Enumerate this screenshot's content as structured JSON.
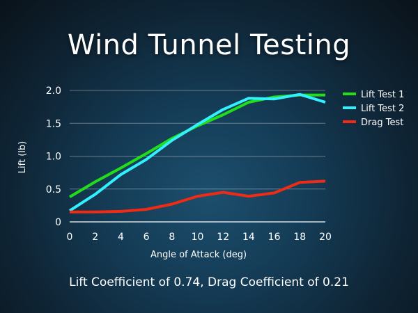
{
  "slide": {
    "title": "Wind Tunnel Testing",
    "subtitle": "Lift Coefficient of 0.74, Drag Coefficient of 0.21"
  },
  "chart_data": {
    "type": "line",
    "xlabel": "Angle of Attack (deg)",
    "ylabel": "Lift (lb)",
    "x": [
      0,
      2,
      4,
      6,
      8,
      10,
      12,
      14,
      16,
      18,
      20
    ],
    "xlim": [
      0,
      20
    ],
    "ylim": [
      0,
      2.0
    ],
    "x_ticks": [
      "0",
      "2",
      "4",
      "6",
      "8",
      "10",
      "12",
      "14",
      "16",
      "18",
      "20"
    ],
    "y_ticks": [
      {
        "value": 0,
        "label": "0"
      },
      {
        "value": 0.5,
        "label": "0.5"
      },
      {
        "value": 1.0,
        "label": "1.0"
      },
      {
        "value": 1.5,
        "label": "1.5"
      },
      {
        "value": 2.0,
        "label": "2.0"
      }
    ],
    "grid": "horizontal",
    "legend_position": "right",
    "series": [
      {
        "name": "Lift Test 1",
        "color": "#22dd1a",
        "values": [
          0.38,
          0.61,
          0.82,
          1.04,
          1.27,
          1.46,
          1.63,
          1.82,
          1.9,
          1.93,
          1.93
        ]
      },
      {
        "name": "Lift Test 2",
        "color": "#33f0ff",
        "values": [
          0.17,
          0.42,
          0.72,
          0.95,
          1.24,
          1.48,
          1.71,
          1.88,
          1.87,
          1.94,
          1.82
        ]
      },
      {
        "name": "Drag Test",
        "color": "#ef2a15",
        "values": [
          0.15,
          0.15,
          0.16,
          0.19,
          0.27,
          0.39,
          0.45,
          0.39,
          0.44,
          0.6,
          0.62
        ]
      }
    ]
  }
}
